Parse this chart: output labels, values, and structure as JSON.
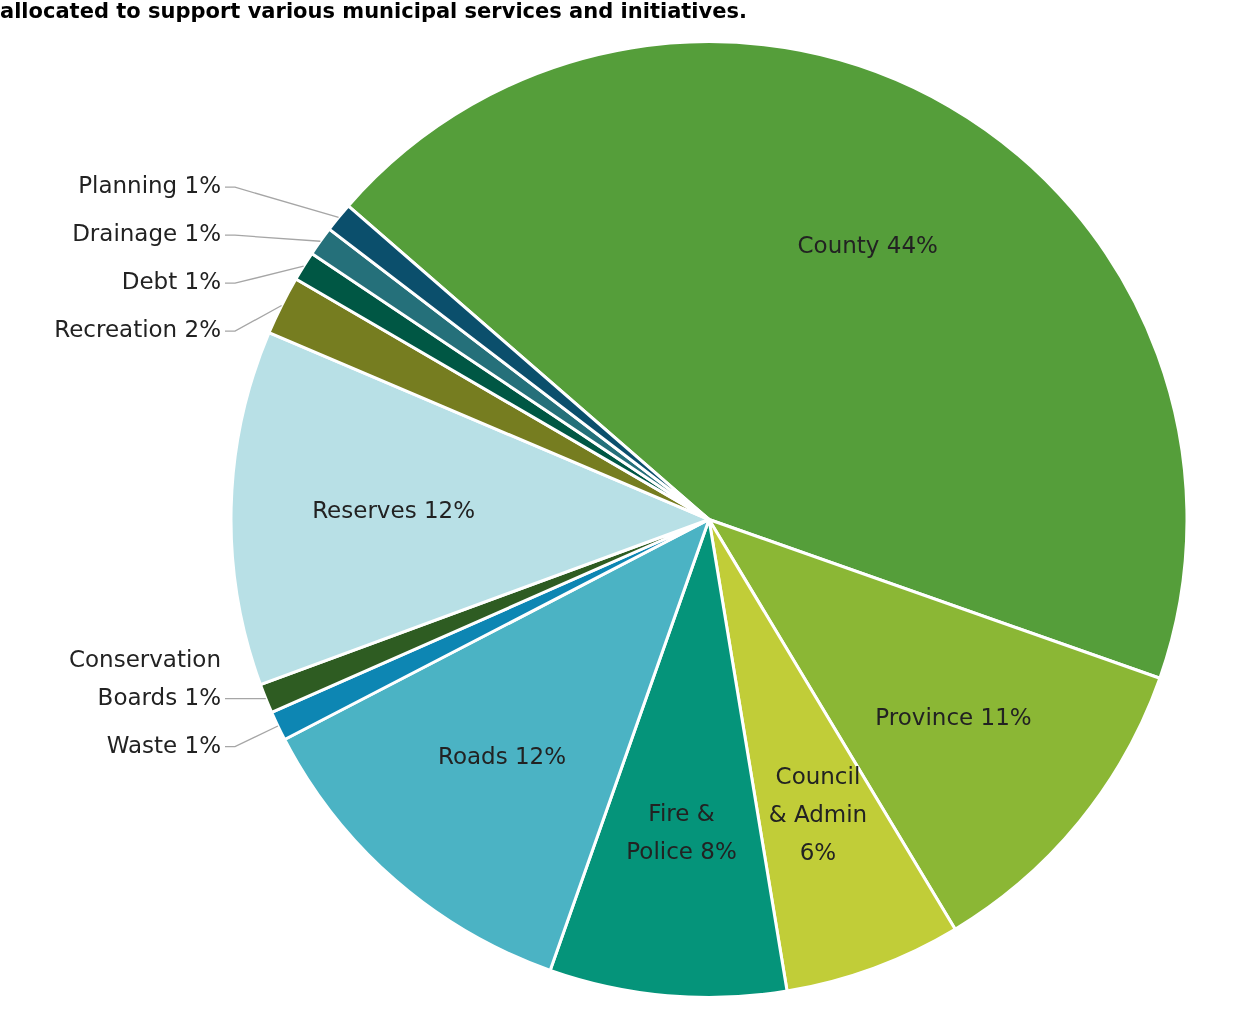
{
  "chart_data": {
    "type": "pie",
    "subtitle": "allocated to support various municipal services and initiatives.",
    "categories": [
      "County",
      "Province",
      "Council & Admin",
      "Fire & Police",
      "Roads",
      "Waste",
      "Conservation Boards",
      "Reserves",
      "Recreation",
      "Debt",
      "Drainage",
      "Planning"
    ],
    "values": [
      44,
      11,
      6,
      8,
      12,
      1,
      1,
      12,
      2,
      1,
      1,
      1
    ],
    "value_labels": [
      "44%",
      "11%",
      "6%",
      "8%",
      "12%",
      "1%",
      "1%",
      "12%",
      "2%",
      "1%",
      "1%",
      "1%"
    ],
    "colors": [
      "#559e3a",
      "#8bb735",
      "#c1cd38",
      "#05947a",
      "#4bb3c4",
      "#0d86b3",
      "#2e5c22",
      "#b8e0e6",
      "#767d20",
      "#005744",
      "#25707a",
      "#0b4f6c"
    ],
    "legend": false
  }
}
